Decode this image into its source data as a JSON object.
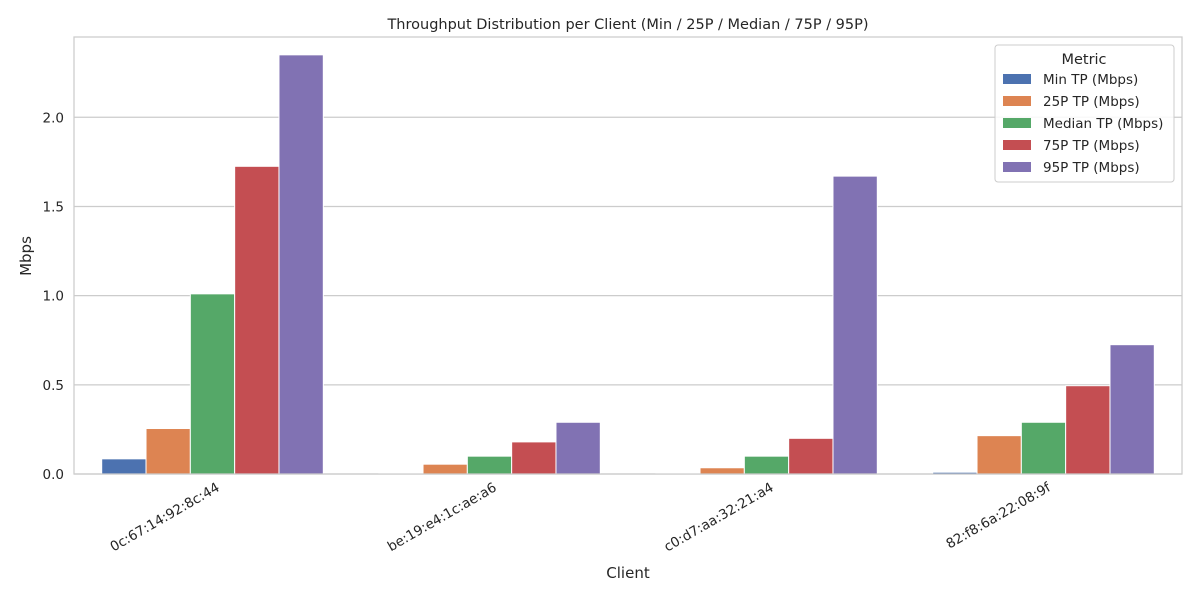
{
  "chart_data": {
    "type": "bar",
    "title": "Throughput Distribution per Client (Min / 25P / Median / 75P / 95P)",
    "xlabel": "Client",
    "ylabel": "Mbps",
    "ylim": [
      0,
      2.45
    ],
    "yticks": [
      0.0,
      0.5,
      1.0,
      1.5,
      2.0
    ],
    "ytick_labels": [
      "0.0",
      "0.5",
      "1.0",
      "1.5",
      "2.0"
    ],
    "grid": "horizontal",
    "legend": {
      "title": "Metric",
      "placement": "top-right"
    },
    "categories": [
      "0c:67:14:92:8c:44",
      "be:19:e4:1c:ae:a6",
      "c0:d7:aa:32:21:a4",
      "82:f8:6a:22:08:9f"
    ],
    "series": [
      {
        "name": "Min TP (Mbps)",
        "color": "#4c72b0",
        "values": [
          0.085,
          0.005,
          0.005,
          0.01
        ]
      },
      {
        "name": "25P TP (Mbps)",
        "color": "#dd8452",
        "values": [
          0.255,
          0.055,
          0.035,
          0.215
        ]
      },
      {
        "name": "Median TP (Mbps)",
        "color": "#55a868",
        "values": [
          1.01,
          0.1,
          0.1,
          0.29
        ]
      },
      {
        "name": "75P TP (Mbps)",
        "color": "#c44e52",
        "values": [
          1.725,
          0.18,
          0.2,
          0.495
        ]
      },
      {
        "name": "95P TP (Mbps)",
        "color": "#8172b3",
        "values": [
          2.35,
          0.29,
          1.67,
          0.725
        ]
      }
    ]
  }
}
